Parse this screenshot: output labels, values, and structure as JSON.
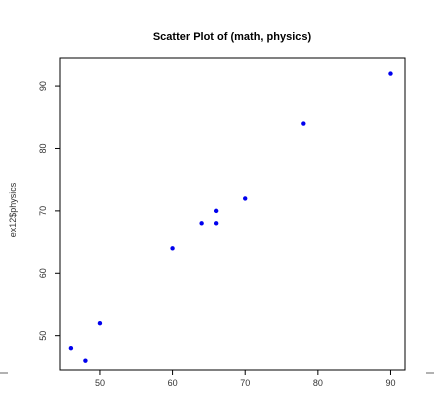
{
  "chart_data": {
    "type": "scatter",
    "title": "Scatter Plot of (math, physics)",
    "xlabel": "",
    "ylabel": "ex12$physics",
    "xlim": [
      44.5,
      92
    ],
    "ylim": [
      44.5,
      94.5
    ],
    "xticks": [
      50,
      60,
      70,
      80,
      90
    ],
    "yticks": [
      50,
      60,
      70,
      80,
      90
    ],
    "grid": false,
    "point_color": "#0000ee",
    "points": [
      {
        "x": 46,
        "y": 48
      },
      {
        "x": 48,
        "y": 46
      },
      {
        "x": 50,
        "y": 52
      },
      {
        "x": 60,
        "y": 64
      },
      {
        "x": 64,
        "y": 68
      },
      {
        "x": 66,
        "y": 68
      },
      {
        "x": 66,
        "y": 70
      },
      {
        "x": 70,
        "y": 72
      },
      {
        "x": 78,
        "y": 84
      },
      {
        "x": 90,
        "y": 92
      }
    ]
  }
}
